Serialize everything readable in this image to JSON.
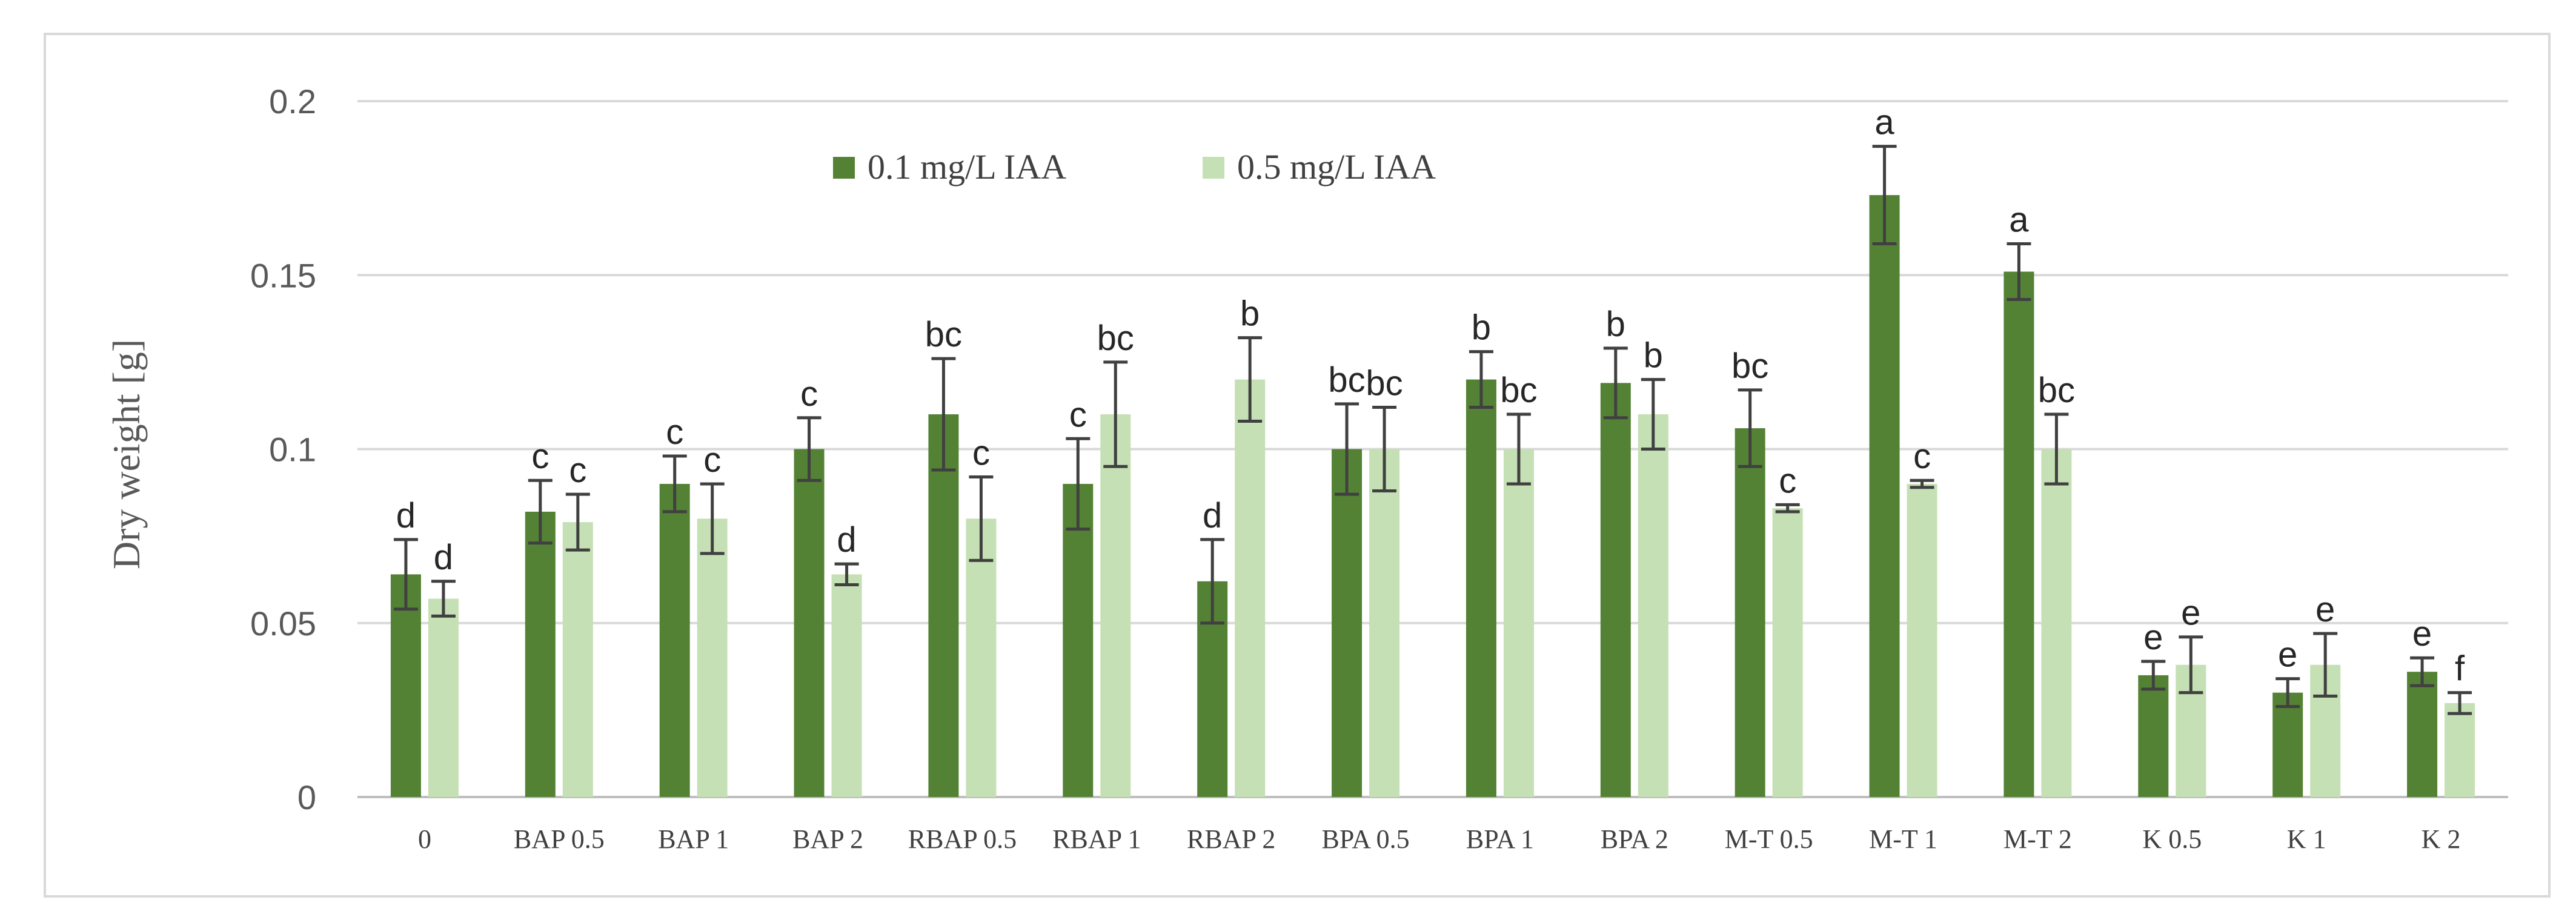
{
  "chart_data": {
    "type": "bar",
    "title": "",
    "xlabel": "",
    "ylabel": "Dry weight [g]",
    "ylim": [
      0,
      0.2
    ],
    "yticks": [
      "0",
      "0.05",
      "0.1",
      "0.15",
      "0.2"
    ],
    "grid": true,
    "legend_position": "top-center",
    "categories": [
      "0",
      "BAP 0.5",
      "BAP 1",
      "BAP 2",
      "RBAP 0.5",
      "RBAP 1",
      "RBAP 2",
      "BPA 0.5",
      "BPA 1",
      "BPA 2",
      "M-T 0.5",
      "M-T 1",
      "M-T 2",
      "K 0.5",
      "K 1",
      "K 2"
    ],
    "series": [
      {
        "name": "0.1 mg/L IAA",
        "color": "#548235",
        "values": [
          0.064,
          0.082,
          0.09,
          0.1,
          0.11,
          0.09,
          0.062,
          0.1,
          0.12,
          0.119,
          0.106,
          0.173,
          0.151,
          0.035,
          0.03,
          0.036
        ],
        "errors": [
          0.01,
          0.009,
          0.008,
          0.009,
          0.016,
          0.013,
          0.012,
          0.013,
          0.008,
          0.01,
          0.011,
          0.014,
          0.008,
          0.004,
          0.004,
          0.004
        ],
        "labels": [
          "d",
          "c",
          "c",
          "c",
          "bc",
          "c",
          "d",
          "bc",
          "b",
          "b",
          "bc",
          "a",
          "a",
          "e",
          "e",
          "e"
        ]
      },
      {
        "name": "0.5 mg/L IAA",
        "color": "#C5E0B4",
        "values": [
          0.057,
          0.079,
          0.08,
          0.064,
          0.08,
          0.11,
          0.12,
          0.1,
          0.1,
          0.11,
          0.083,
          0.09,
          0.1,
          0.038,
          0.038,
          0.027
        ],
        "errors": [
          0.005,
          0.008,
          0.01,
          0.003,
          0.012,
          0.015,
          0.012,
          0.012,
          0.01,
          0.01,
          0.001,
          0.001,
          0.01,
          0.008,
          0.009,
          0.003
        ],
        "labels": [
          "d",
          "c",
          "c",
          "d",
          "c",
          "bc",
          "b",
          "bc",
          "bc",
          "b",
          "c",
          "c",
          "bc",
          "e",
          "e",
          "f"
        ]
      }
    ]
  },
  "colors": {
    "grid": "#D9D9D9",
    "axis": "#BFBFBF",
    "frame": "#D9D9D9",
    "error_bar": "#404040"
  }
}
